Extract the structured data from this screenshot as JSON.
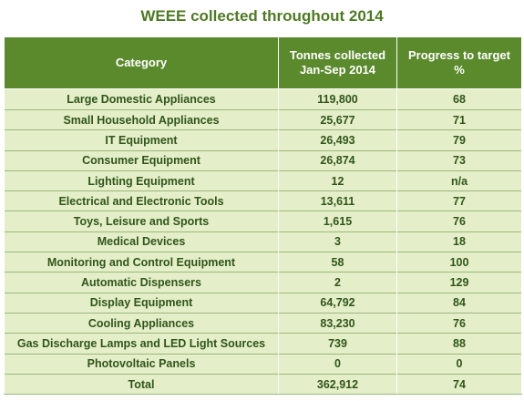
{
  "title": "WEEE collected throughout 2014",
  "chart_data": {
    "type": "table",
    "title": "WEEE collected throughout 2014",
    "columns": [
      "Category",
      "Tonnes collected Jan-Sep 2014",
      "Progress to target %"
    ],
    "rows": [
      [
        "Large Domestic Appliances",
        "119,800",
        "68"
      ],
      [
        "Small Household Appliances",
        "25,677",
        "71"
      ],
      [
        "IT Equipment",
        "26,493",
        "79"
      ],
      [
        "Consumer Equipment",
        "26,874",
        "73"
      ],
      [
        "Lighting Equipment",
        "12",
        "n/a"
      ],
      [
        "Electrical and Electronic Tools",
        "13,611",
        "77"
      ],
      [
        "Toys, Leisure and Sports",
        "1,615",
        "76"
      ],
      [
        "Medical Devices",
        "3",
        "18"
      ],
      [
        "Monitoring and Control Equipment",
        "58",
        "100"
      ],
      [
        "Automatic Dispensers",
        "2",
        "129"
      ],
      [
        "Display Equipment",
        "64,792",
        "84"
      ],
      [
        "Cooling Appliances",
        "83,230",
        "76"
      ],
      [
        "Gas Discharge Lamps and LED Light Sources",
        "739",
        "88"
      ],
      [
        "Photovoltaic Panels",
        "0",
        "0"
      ],
      [
        "Total",
        "362,912",
        "74"
      ]
    ]
  },
  "header": {
    "category": "Category",
    "tonnes_line1": "Tonnes collected",
    "tonnes_line2": "Jan-Sep 2014",
    "progress_line1": "Progress to target",
    "progress_line2": "%"
  },
  "colors": {
    "title": "#4d7a22",
    "header_bg": "#5b8a2c",
    "row_bg": "#e4eec9",
    "row_text": "#30551a"
  }
}
